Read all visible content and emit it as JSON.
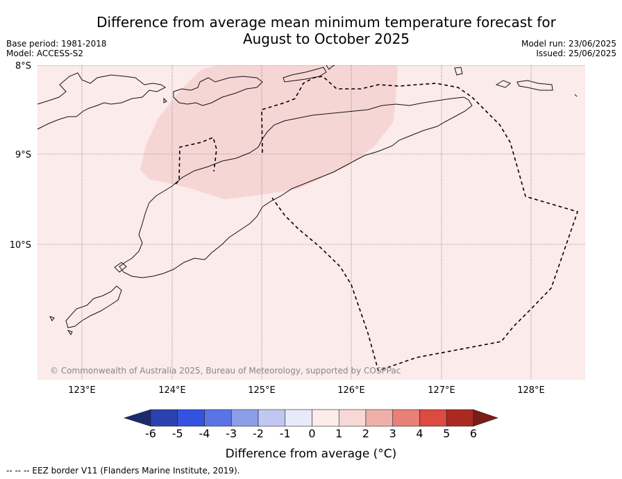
{
  "title_line1": "Difference from average mean minimum temperature forecast for",
  "title_line2": "August to October 2025",
  "meta_left": [
    "Base period: 1981-2018",
    "Model: ACCESS-S2"
  ],
  "meta_right": [
    "Model run: 23/06/2025",
    "Issued: 25/06/2025"
  ],
  "copyright": "© Commonwealth of Australia 2025, Bureau of Meteorology, supported by COSPPac",
  "lat_ticks": [
    "8°S",
    "9°S",
    "10°S"
  ],
  "lon_ticks": [
    "123°E",
    "124°E",
    "125°E",
    "126°E",
    "127°E",
    "128°E"
  ],
  "colorbar": {
    "title": "Difference from average (°C)",
    "labels": [
      "-6",
      "-5",
      "-4",
      "-3",
      "-2",
      "-1",
      "0",
      "1",
      "2",
      "3",
      "4",
      "5",
      "6"
    ],
    "colors": [
      "#1b2a6e",
      "#2a42b0",
      "#3352e0",
      "#5a74e6",
      "#8a9eea",
      "#c0c8f2",
      "#e8eafa",
      "#fcecea",
      "#f7d8d6",
      "#efb0aa",
      "#e88078",
      "#dc4a40",
      "#aa2a22",
      "#7a1c18"
    ]
  },
  "map": {
    "background_color": "#fbebea",
    "warm_region_color": "#f6d6d5"
  },
  "footnote": "--  --  -- EEZ border V11 (Flanders Marine Institute, 2019)."
}
